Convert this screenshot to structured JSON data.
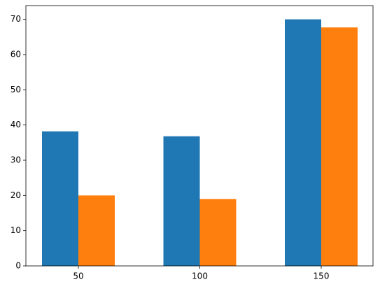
{
  "chart_data": {
    "type": "bar",
    "categories": [
      "50",
      "100",
      "150"
    ],
    "series": [
      {
        "color": "#1f77b4",
        "values": [
          38.2,
          36.8,
          70
        ]
      },
      {
        "color": "#ff7f0e",
        "values": [
          20,
          19,
          67.7
        ]
      }
    ],
    "ylim": [
      0,
      73.9
    ],
    "yticks": [
      0,
      10,
      20,
      30,
      40,
      50,
      60,
      70
    ]
  }
}
